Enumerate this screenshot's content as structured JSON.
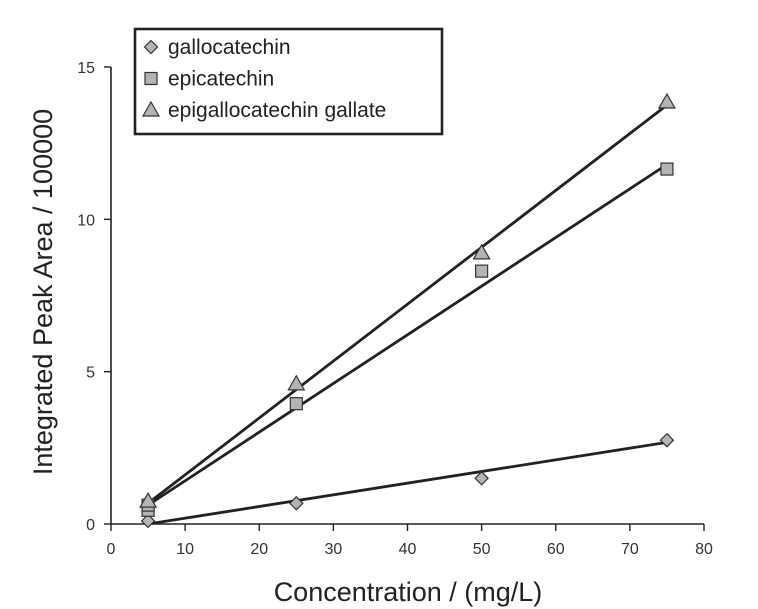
{
  "chart_data": {
    "type": "scatter",
    "xlabel": "Concentration / (mg/L)",
    "ylabel": "Integrated Peak Area / 100000",
    "xlim": [
      0,
      80
    ],
    "ylim": [
      0,
      15
    ],
    "xticks": [
      0,
      10,
      20,
      30,
      40,
      50,
      60,
      70,
      80
    ],
    "yticks": [
      0,
      5,
      10,
      15
    ],
    "grid": false,
    "legend_position": "top-left",
    "marker_fill": "#b4b4b4",
    "marker_stroke": "#333333",
    "line_color": "#222222",
    "series": [
      {
        "name": "gallocatechin",
        "marker": "diamond",
        "x": [
          5,
          25,
          50,
          75
        ],
        "y": [
          0.1,
          0.68,
          1.5,
          2.75
        ],
        "fit": [
          [
            5,
            0.0
          ],
          [
            75,
            2.68
          ]
        ]
      },
      {
        "name": "epicatechin",
        "marker": "square",
        "x": [
          5,
          5,
          25,
          50,
          75
        ],
        "y": [
          0.45,
          0.62,
          3.95,
          8.3,
          11.65
        ],
        "fit": [
          [
            5,
            0.62
          ],
          [
            75,
            11.8
          ]
        ]
      },
      {
        "name": "epigallocatechin gallate",
        "marker": "triangle",
        "x": [
          5,
          25,
          50,
          75
        ],
        "y": [
          0.75,
          4.6,
          8.9,
          13.85
        ],
        "fit": [
          [
            5,
            0.68
          ],
          [
            75,
            13.75
          ]
        ]
      }
    ]
  }
}
